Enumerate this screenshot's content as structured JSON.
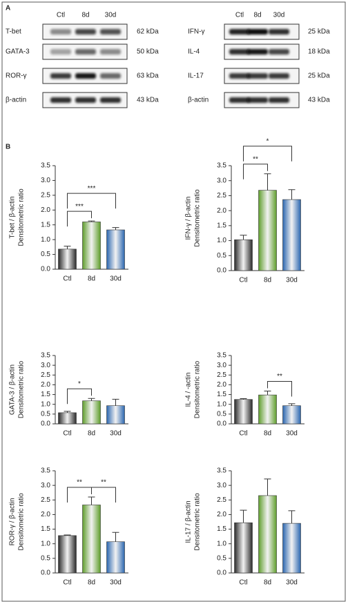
{
  "panel_a": {
    "label": "A",
    "left": {
      "lanes": [
        "Ctl",
        "8d",
        "30d"
      ],
      "rows": [
        {
          "protein": "T-bet",
          "size": "62 kDa"
        },
        {
          "protein": "GATA-3",
          "size": "50 kDa"
        },
        {
          "protein": "ROR-γ",
          "size": "63 kDa"
        },
        {
          "protein": "β-actin",
          "size": "43 kDa"
        }
      ]
    },
    "right": {
      "lanes": [
        "Ctl",
        "8d",
        "30d"
      ],
      "rows": [
        {
          "protein": "IFN-γ",
          "size": "25 kDa"
        },
        {
          "protein": "IL-4",
          "size": "18 kDa"
        },
        {
          "protein": "IL-17",
          "size": "25 kDa"
        },
        {
          "protein": "β-actin",
          "size": "43 kDa"
        }
      ]
    }
  },
  "panel_b_label": "B",
  "chart_data": [
    {
      "type": "bar",
      "ylabel": [
        "T-bet / β-actin",
        "Densitometric ratio"
      ],
      "categories": [
        "Ctl",
        "8d",
        "30d"
      ],
      "values": [
        0.68,
        1.6,
        1.33
      ],
      "errors": [
        0.1,
        0.03,
        0.08
      ],
      "colors": [
        "#2a2a2a",
        "#5f9e2c",
        "#2a66b0"
      ],
      "ylim": [
        0,
        3.5
      ],
      "yticks": [
        {
          "value": 0,
          "label": "0.0"
        },
        0.5,
        {
          "value": 1,
          "label": "1.0"
        },
        1.5,
        {
          "value": 2,
          "label": "2.0"
        },
        2.5,
        {
          "value": 3,
          "label": "3.0"
        },
        3.5
      ],
      "annotations": [
        {
          "between": [
            0,
            1
          ],
          "label": "***"
        },
        {
          "between": [
            0,
            2
          ],
          "label": "***"
        }
      ]
    },
    {
      "type": "bar",
      "ylabel": [
        "IFN-γ / β-actin",
        "Densitometric ratio"
      ],
      "categories": [
        "Ctl",
        "8d",
        "30d"
      ],
      "values": [
        1.03,
        2.68,
        2.37
      ],
      "errors": [
        0.15,
        0.55,
        0.33
      ],
      "colors": [
        "#2a2a2a",
        "#5f9e2c",
        "#2a66b0"
      ],
      "ylim": [
        0,
        3.5
      ],
      "yticks": [
        {
          "value": 0,
          "label": "0.0"
        },
        0.5,
        {
          "value": 1,
          "label": "1.0"
        },
        1.5,
        {
          "value": 2,
          "label": "2.0"
        },
        2.5,
        {
          "value": 3,
          "label": "3.0"
        },
        3.5
      ],
      "annotations": [
        {
          "between": [
            0,
            1
          ],
          "label": "**"
        },
        {
          "between": [
            0,
            2
          ],
          "label": "*"
        }
      ]
    },
    {
      "type": "bar",
      "ylabel": [
        "GATA-3 / β-actin",
        "Densitometric ratio"
      ],
      "categories": [
        "Ctl",
        "8d",
        "30d"
      ],
      "values": [
        0.57,
        1.18,
        0.93
      ],
      "errors": [
        0.07,
        0.12,
        0.33
      ],
      "colors": [
        "#2a2a2a",
        "#5f9e2c",
        "#2a66b0"
      ],
      "ylim": [
        0,
        3.5
      ],
      "yticks": [
        {
          "value": 0,
          "label": "0.0"
        },
        0.5,
        {
          "value": 1,
          "label": "1.0"
        },
        1.5,
        {
          "value": 2,
          "label": "2.0"
        },
        2.5,
        {
          "value": 3,
          "label": "3.0"
        },
        3.5
      ],
      "annotations": [
        {
          "between": [
            0,
            1
          ],
          "label": "*"
        }
      ]
    },
    {
      "type": "bar",
      "ylabel": [
        "IL-4 / -actin",
        "Densitometric ratio"
      ],
      "categories": [
        "Ctl",
        "8d",
        "30d"
      ],
      "values": [
        1.25,
        1.48,
        0.93
      ],
      "errors": [
        0.04,
        0.2,
        0.1
      ],
      "colors": [
        "#2a2a2a",
        "#5f9e2c",
        "#2a66b0"
      ],
      "ylim": [
        0,
        3.5
      ],
      "yticks": [
        {
          "value": 0,
          "label": "0.0"
        },
        0.5,
        {
          "value": 1,
          "label": "1.0"
        },
        1.5,
        {
          "value": 2,
          "label": "2.0"
        },
        2.5,
        {
          "value": 3,
          "label": "3.0"
        },
        3.5
      ],
      "annotations": [
        {
          "between": [
            1,
            2
          ],
          "label": "**"
        }
      ]
    },
    {
      "type": "bar",
      "ylabel": [
        "ROR-γ / β-actin",
        "Densitometric ratio"
      ],
      "categories": [
        "Ctl",
        "8d",
        "30d"
      ],
      "values": [
        1.28,
        2.33,
        1.07
      ],
      "errors": [
        0.02,
        0.27,
        0.32
      ],
      "colors": [
        "#2a2a2a",
        "#5f9e2c",
        "#2a66b0"
      ],
      "ylim": [
        0,
        3.5
      ],
      "yticks": [
        {
          "value": 0,
          "label": "0.0"
        },
        0.5,
        {
          "value": 1,
          "label": "1.0"
        },
        1.5,
        {
          "value": 2,
          "label": "2.0"
        },
        2.5,
        {
          "value": 3,
          "label": "3.0"
        },
        3.5
      ],
      "annotations": [
        {
          "between": [
            0,
            1
          ],
          "label": "**"
        },
        {
          "between": [
            1,
            2
          ],
          "label": "**"
        }
      ]
    },
    {
      "type": "bar",
      "ylabel": [
        "IL-17 / β-actin",
        "Densitometric ratio"
      ],
      "categories": [
        "Ctl",
        "8d",
        "30d"
      ],
      "values": [
        1.72,
        2.65,
        1.7
      ],
      "errors": [
        0.43,
        0.57,
        0.43
      ],
      "colors": [
        "#2a2a2a",
        "#5f9e2c",
        "#2a66b0"
      ],
      "ylim": [
        0,
        3.5
      ],
      "yticks": [
        {
          "value": 0,
          "label": "0.0"
        },
        0.5,
        {
          "value": 1,
          "label": "1.0"
        },
        1.5,
        {
          "value": 2,
          "label": "2.0"
        },
        2.5,
        {
          "value": 3,
          "label": "3.0"
        },
        3.5
      ],
      "annotations": []
    }
  ]
}
